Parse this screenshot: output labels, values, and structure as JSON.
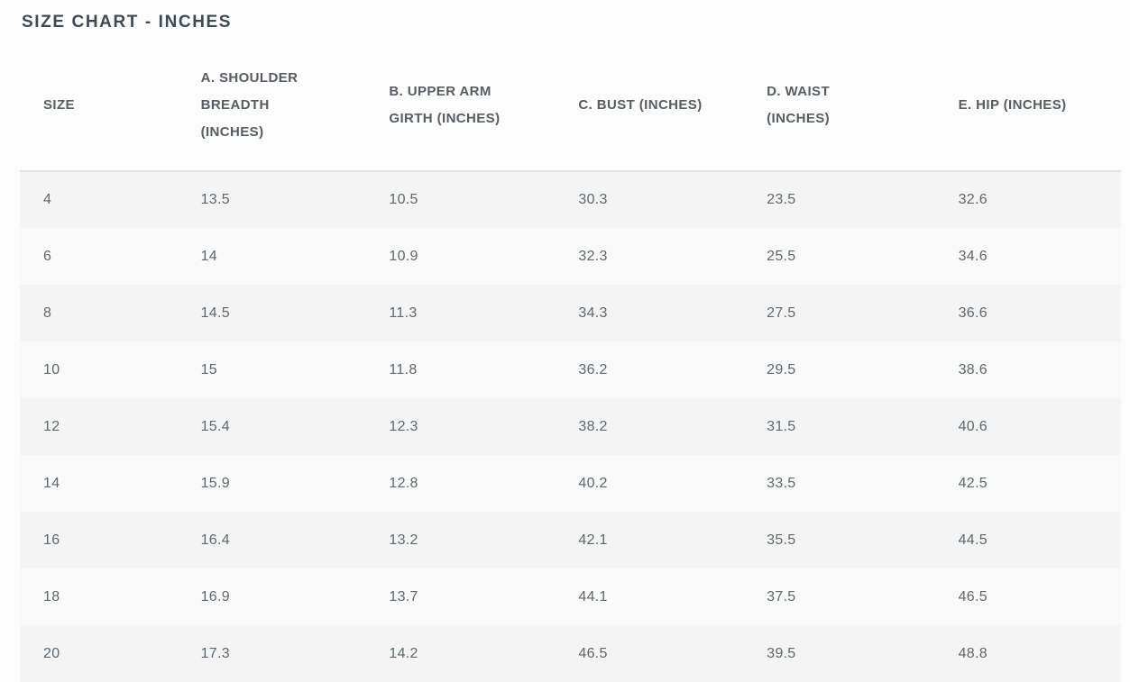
{
  "page_title": "SIZE CHART - INCHES",
  "chart_data": {
    "type": "table",
    "title": "SIZE CHART - INCHES",
    "columns": [
      {
        "key": "size",
        "label": "SIZE",
        "label_lines": [
          "SIZE"
        ]
      },
      {
        "key": "shoulder",
        "label": "A. SHOULDER BREADTH (INCHES)",
        "label_lines": [
          "A. SHOULDER",
          "BREADTH",
          "(INCHES)"
        ]
      },
      {
        "key": "upper_arm",
        "label": "B. UPPER ARM GIRTH (INCHES)",
        "label_lines": [
          "B. UPPER ARM",
          "GIRTH (INCHES)"
        ]
      },
      {
        "key": "bust",
        "label": "C. BUST (INCHES)",
        "label_lines": [
          "C. BUST (INCHES)"
        ]
      },
      {
        "key": "waist",
        "label": "D. WAIST (INCHES)",
        "label_lines": [
          "D. WAIST",
          "(INCHES)"
        ]
      },
      {
        "key": "hip",
        "label": "E. HIP (INCHES)",
        "label_lines": [
          "E. HIP (INCHES)"
        ]
      }
    ],
    "rows": [
      [
        "4",
        "13.5",
        "10.5",
        "30.3",
        "23.5",
        "32.6"
      ],
      [
        "6",
        "14",
        "10.9",
        "32.3",
        "25.5",
        "34.6"
      ],
      [
        "8",
        "14.5",
        "11.3",
        "34.3",
        "27.5",
        "36.6"
      ],
      [
        "10",
        "15",
        "11.8",
        "36.2",
        "29.5",
        "38.6"
      ],
      [
        "12",
        "15.4",
        "12.3",
        "38.2",
        "31.5",
        "40.6"
      ],
      [
        "14",
        "15.9",
        "12.8",
        "40.2",
        "33.5",
        "42.5"
      ],
      [
        "16",
        "16.4",
        "13.2",
        "42.1",
        "35.5",
        "44.5"
      ],
      [
        "18",
        "16.9",
        "13.7",
        "44.1",
        "37.5",
        "46.5"
      ],
      [
        "20",
        "17.3",
        "14.2",
        "46.5",
        "39.5",
        "48.8"
      ]
    ]
  },
  "colors": {
    "page_bg": "#fcfcfc",
    "title_text": "#3e4a54",
    "header_text": "#575d63",
    "cell_text": "#5e676d",
    "row_stripe_dark": "#f4f4f4",
    "row_stripe_light": "#f9f9f9",
    "header_divider": "#e2e2e2"
  }
}
